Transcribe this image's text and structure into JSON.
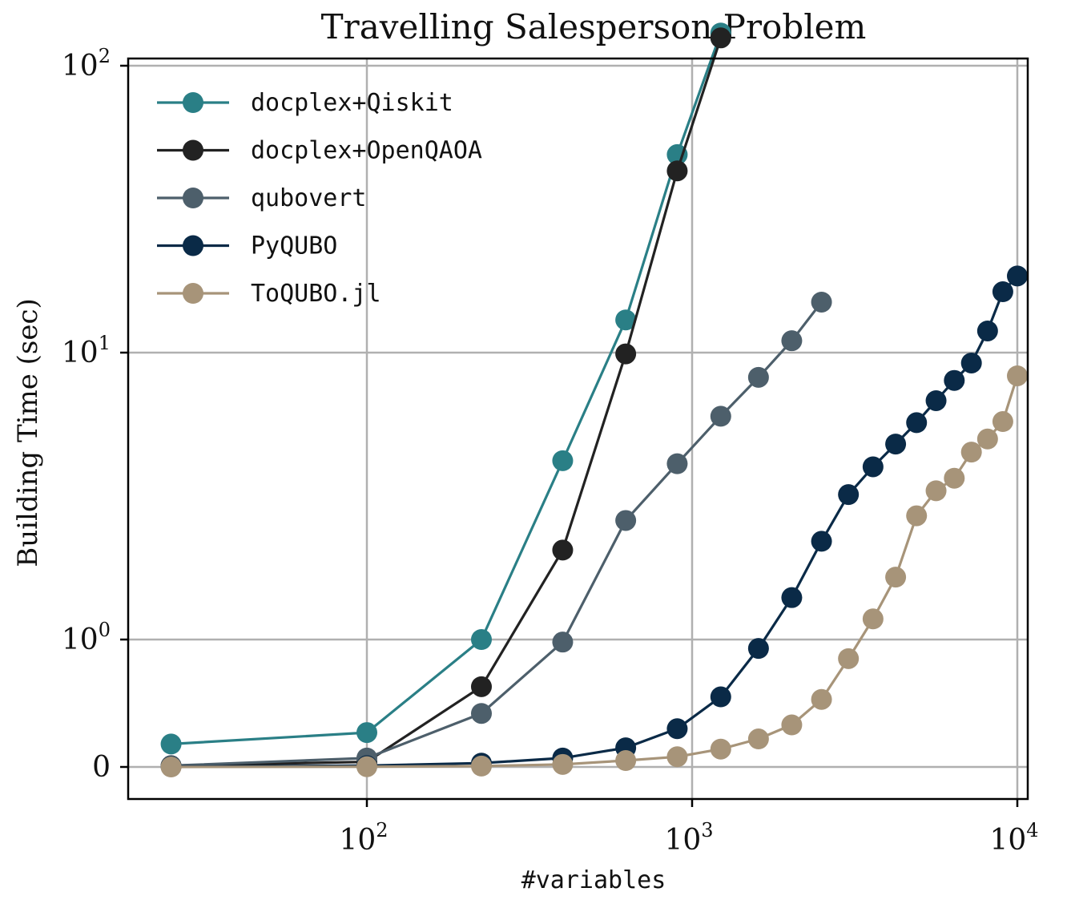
{
  "chart_data": {
    "type": "line",
    "title": "Travelling Salesperson Problem",
    "xlabel": "#variables",
    "ylabel": "Building Time (sec)",
    "xscale": "log",
    "yscale": "symlog",
    "xlim": [
      20,
      12000
    ],
    "grid": true,
    "legend_position": "top-left",
    "x_ticks": [
      {
        "value": 100,
        "base": "10",
        "exp": "2"
      },
      {
        "value": 1000,
        "base": "10",
        "exp": "3"
      },
      {
        "value": 10000,
        "base": "10",
        "exp": "4"
      }
    ],
    "y_ticks": [
      {
        "value": 0,
        "base": "0",
        "exp": ""
      },
      {
        "value": 1,
        "base": "10",
        "exp": "0"
      },
      {
        "value": 10,
        "base": "10",
        "exp": "1"
      },
      {
        "value": 100,
        "base": "10",
        "exp": "2"
      }
    ],
    "series": [
      {
        "name": "docplex+Qiskit",
        "color": "#2a7f86",
        "x": [
          25,
          100,
          225,
          400,
          625,
          900,
          1225
        ],
        "y": [
          0.18,
          0.27,
          1.0,
          4.2,
          13.0,
          49.0,
          130.0
        ]
      },
      {
        "name": "docplex+OpenQAOA",
        "color": "#222222",
        "x": [
          25,
          100,
          225,
          400,
          625,
          900,
          1225
        ],
        "y": [
          0.01,
          0.04,
          0.63,
          2.05,
          9.9,
          43.0,
          125.0
        ]
      },
      {
        "name": "qubovert",
        "color": "#4d5f6b",
        "x": [
          25,
          100,
          225,
          400,
          625,
          900,
          1225,
          1600,
          2025,
          2500
        ],
        "y": [
          0.01,
          0.07,
          0.42,
          0.98,
          2.6,
          4.1,
          6.0,
          8.2,
          11.0,
          15.0
        ]
      },
      {
        "name": "PyQUBO",
        "color": "#0a2a47",
        "x": [
          25,
          100,
          225,
          400,
          625,
          900,
          1225,
          1600,
          2025,
          2500,
          3025,
          3600,
          4225,
          4900,
          5625,
          6400,
          7225,
          8100,
          9025,
          10000
        ],
        "y": [
          0.003,
          0.01,
          0.03,
          0.07,
          0.15,
          0.3,
          0.55,
          0.93,
          1.4,
          2.2,
          3.2,
          4.0,
          4.8,
          5.7,
          6.8,
          8.0,
          9.2,
          11.9,
          16.3,
          18.5
        ]
      },
      {
        "name": "ToQUBO.jl",
        "color": "#a79479",
        "x": [
          25,
          100,
          225,
          400,
          625,
          900,
          1225,
          1600,
          2025,
          2500,
          3025,
          3600,
          4225,
          4900,
          5625,
          6400,
          7225,
          8100,
          9025,
          10000
        ],
        "y": [
          0.0,
          0.002,
          0.007,
          0.02,
          0.05,
          0.08,
          0.14,
          0.22,
          0.33,
          0.53,
          0.85,
          1.18,
          1.65,
          2.7,
          3.3,
          3.65,
          4.5,
          5.0,
          5.75,
          8.3
        ]
      }
    ]
  }
}
